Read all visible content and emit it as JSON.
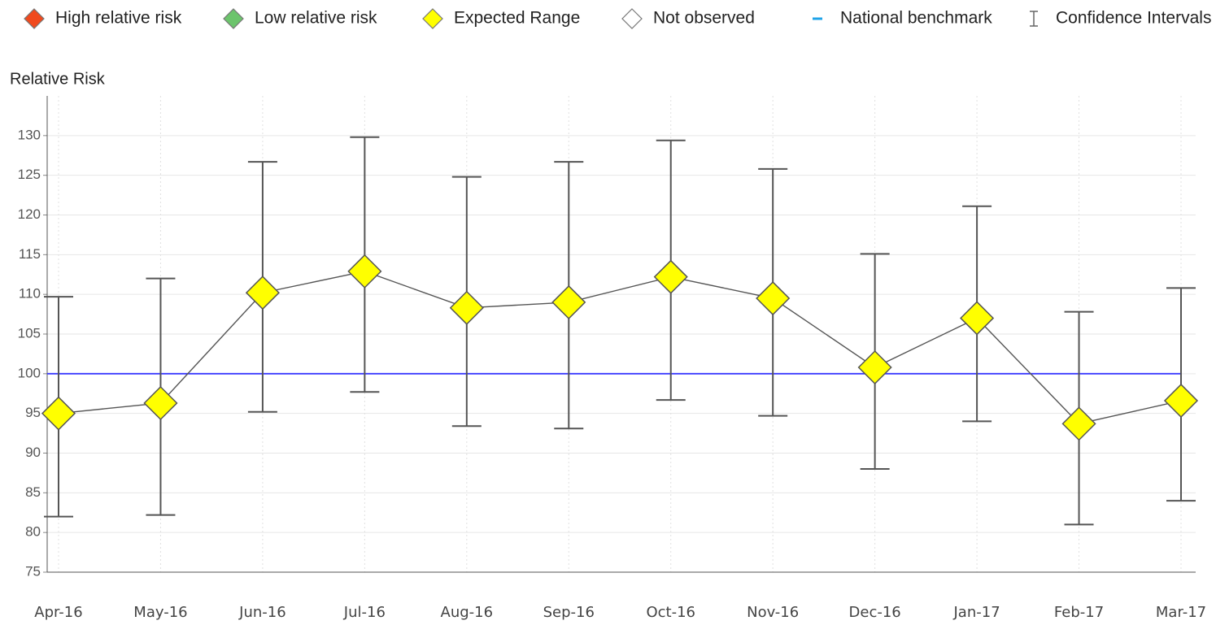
{
  "chart_data": {
    "type": "line",
    "y_axis_label": "Relative Risk",
    "categories": [
      "Apr-16",
      "May-16",
      "Jun-16",
      "Jul-16",
      "Aug-16",
      "Sep-16",
      "Oct-16",
      "Nov-16",
      "Dec-16",
      "Jan-17",
      "Feb-17",
      "Mar-17"
    ],
    "series": [
      {
        "color": "#ffff00",
        "values": [
          95,
          96.3,
          110.2,
          112.9,
          108.3,
          109,
          112.2,
          109.5,
          100.8,
          107,
          93.7,
          96.6
        ],
        "lower": [
          82,
          82.2,
          95.2,
          97.7,
          93.4,
          93.1,
          96.7,
          94.7,
          88,
          94,
          81,
          84
        ],
        "upper": [
          109.7,
          112,
          126.7,
          129.8,
          124.8,
          126.7,
          129.4,
          125.8,
          115.1,
          121.1,
          107.8,
          110.8
        ]
      }
    ],
    "benchmark": {
      "value": 100,
      "color": "#3a3aff"
    },
    "ylim": [
      75,
      135
    ],
    "yticks": [
      75,
      80,
      85,
      90,
      95,
      100,
      105,
      110,
      115,
      120,
      125,
      130
    ],
    "grid": true,
    "legend": [
      {
        "label": "High relative risk",
        "color": "#f04a1e",
        "shape": "diamond"
      },
      {
        "label": "Low relative risk",
        "color": "#6cc46c",
        "shape": "diamond"
      },
      {
        "label": "Expected Range",
        "color": "#ffff00",
        "shape": "diamond"
      },
      {
        "label": "Not observed",
        "color": "#ffffff",
        "shape": "diamond"
      },
      {
        "label": "National benchmark",
        "color": "#1fa3e8",
        "shape": "dash"
      },
      {
        "label": "Confidence Intervals",
        "color": "#666666",
        "shape": "ibar"
      }
    ]
  }
}
